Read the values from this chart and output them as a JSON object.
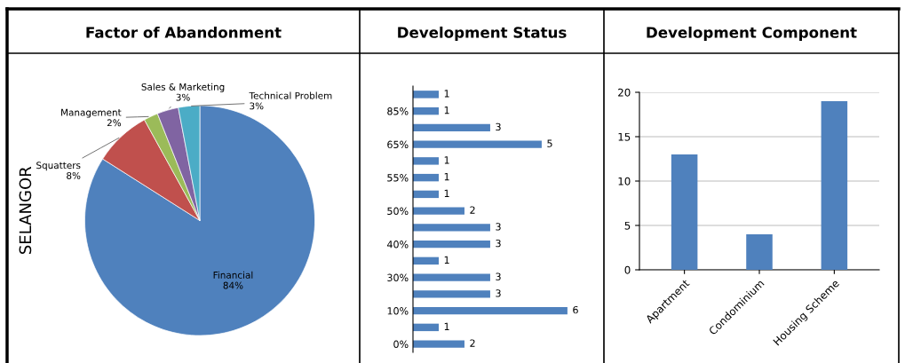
{
  "chart_data": [
    {
      "type": "pie",
      "title": "Factor of Abandonment",
      "ylabel": "SELANGOR",
      "categories": [
        "Financial",
        "Squatters",
        "Management",
        "Sales & Marketing",
        "Technical Problem"
      ],
      "values": [
        84,
        8,
        2,
        3,
        3
      ],
      "value_labels": [
        "84%",
        "8%",
        "2%",
        "3%",
        "3%"
      ],
      "colors": [
        "#4f81bd",
        "#c0504d",
        "#9bbb59",
        "#8064a2",
        "#4bacc6"
      ],
      "legend": false
    },
    {
      "type": "bar",
      "title": "Development Status",
      "orientation": "horizontal",
      "categories": [
        null,
        "85%",
        null,
        "65%",
        null,
        "55%",
        null,
        "50%",
        null,
        "40%",
        null,
        "30%",
        null,
        "10%",
        null,
        "0%"
      ],
      "values": [
        1,
        1,
        3,
        5,
        1,
        1,
        1,
        2,
        3,
        3,
        1,
        3,
        3,
        6,
        1,
        2
      ],
      "color": "#4f81bd",
      "data_labels": true,
      "tick_labels": "y",
      "grid": false,
      "legend": false
    },
    {
      "type": "bar",
      "title": "Development Component",
      "categories": [
        "Apartment",
        "Condominium",
        "Housing Scheme"
      ],
      "values": [
        13,
        4,
        19
      ],
      "color": "#4f81bd",
      "ylim": [
        0,
        20
      ],
      "yticks": [
        0,
        5,
        10,
        15,
        20
      ],
      "grid": "y",
      "legend": false
    }
  ]
}
